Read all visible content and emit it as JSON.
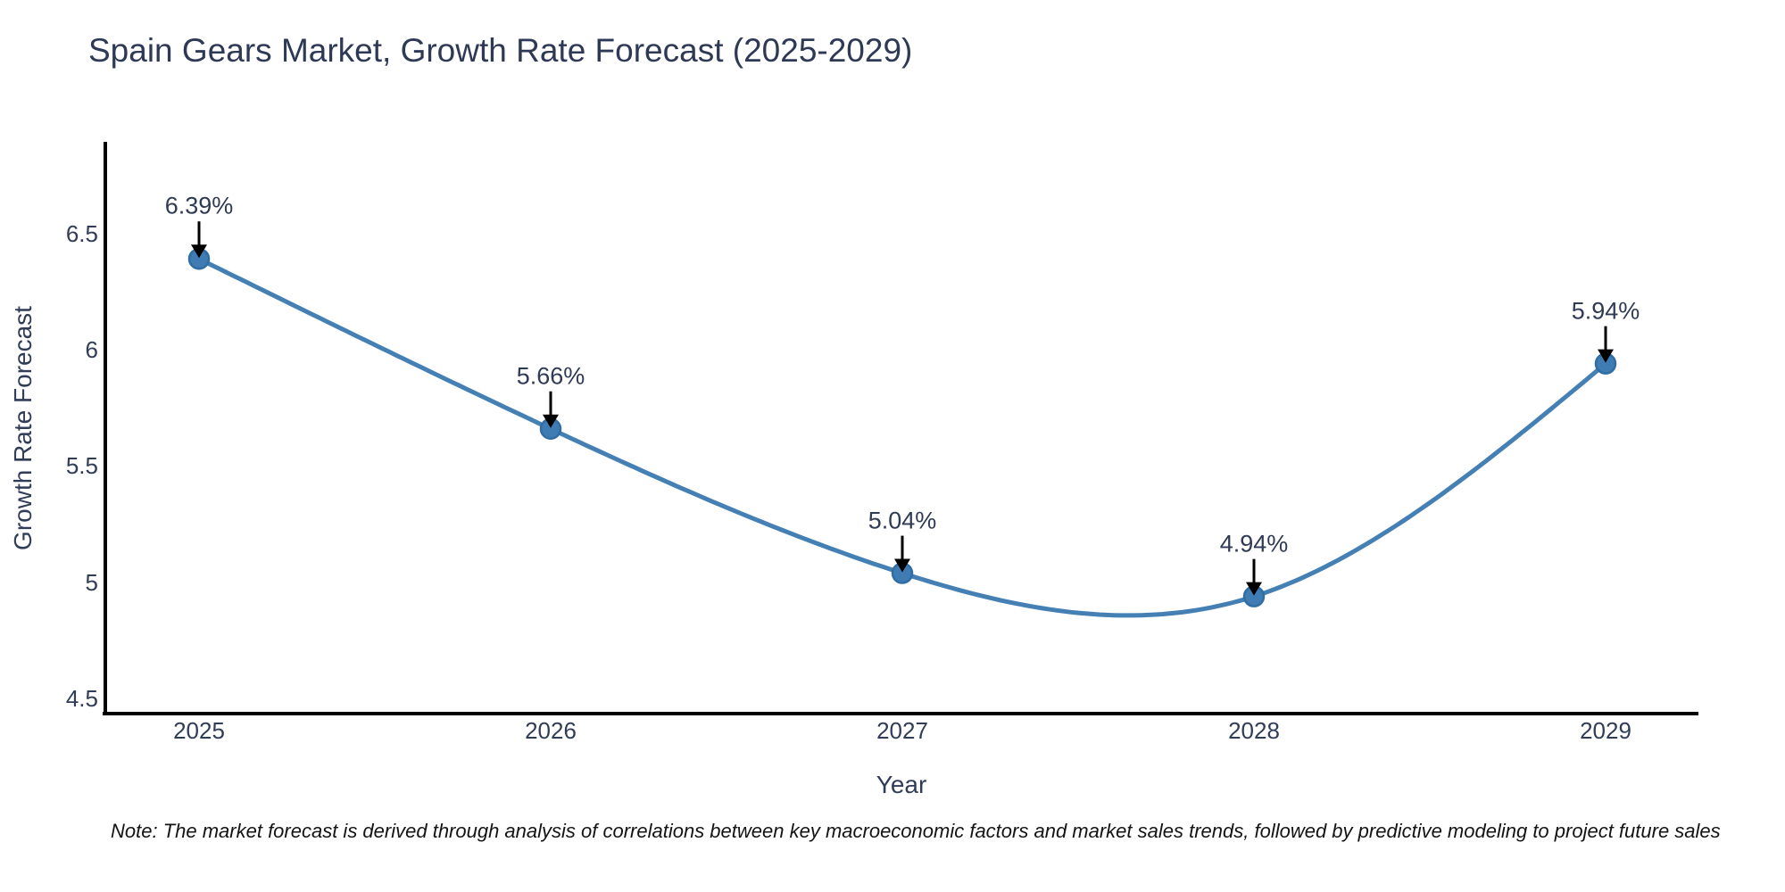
{
  "title": "Spain Gears Market, Growth Rate Forecast (2025-2029)",
  "note": "Note: The market forecast is derived through analysis of correlations between key macroeconomic factors and market sales trends, followed by predictive modeling to project future sales",
  "chart_data": {
    "type": "line",
    "title": "Spain Gears Market, Growth Rate Forecast (2025-2029)",
    "x": [
      2025,
      2026,
      2027,
      2028,
      2029
    ],
    "series": [
      {
        "name": "Growth Rate Forecast",
        "values": [
          6.39,
          5.66,
          5.04,
          4.94,
          5.94
        ]
      }
    ],
    "point_labels": [
      "6.39%",
      "5.66%",
      "5.04%",
      "4.94%",
      "5.94%"
    ],
    "xlabel": "Year",
    "ylabel": "Growth Rate Forecast",
    "xticklabels": [
      "2025",
      "2026",
      "2027",
      "2028",
      "2029"
    ],
    "yticks": [
      4.5,
      5,
      5.5,
      6,
      6.5
    ],
    "yticklabels": [
      "4.5",
      "5",
      "5.5",
      "6",
      "6.5"
    ],
    "ylim": [
      4.44,
      6.9
    ],
    "line_shape": "spline",
    "grid": false,
    "legend": false,
    "annotation_style": "arrow-to-point",
    "colors": {
      "line": "#4580b5",
      "marker_fill": "#3f7cb3",
      "marker_edge": "#2f6da4",
      "arrow": "#000000",
      "axis": "#000000",
      "text": "#2e3a55",
      "note_text": "#141414",
      "background": "#ffffff"
    }
  }
}
